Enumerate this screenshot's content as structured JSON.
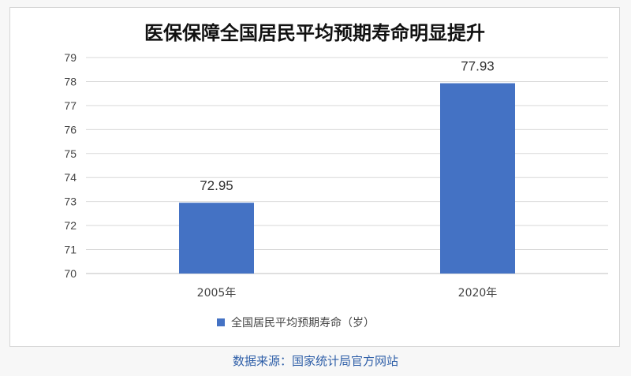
{
  "chart_data": {
    "type": "bar",
    "title": "医保保障全国居民平均预期寿命明显提升",
    "categories": [
      "2005年",
      "2020年"
    ],
    "series": [
      {
        "name": "全国居民平均预期寿命（岁）",
        "values": [
          72.95,
          77.93
        ],
        "color": "#4472c4"
      }
    ],
    "data_labels": [
      "72.95",
      "77.93"
    ],
    "y_ticks": [
      70,
      71,
      72,
      73,
      74,
      75,
      76,
      77,
      78,
      79
    ],
    "ylim": [
      70,
      79
    ],
    "xlabel": "",
    "ylabel": "",
    "grid": true,
    "legend": "bottom"
  },
  "source_note": "数据来源：国家统计局官方网站"
}
